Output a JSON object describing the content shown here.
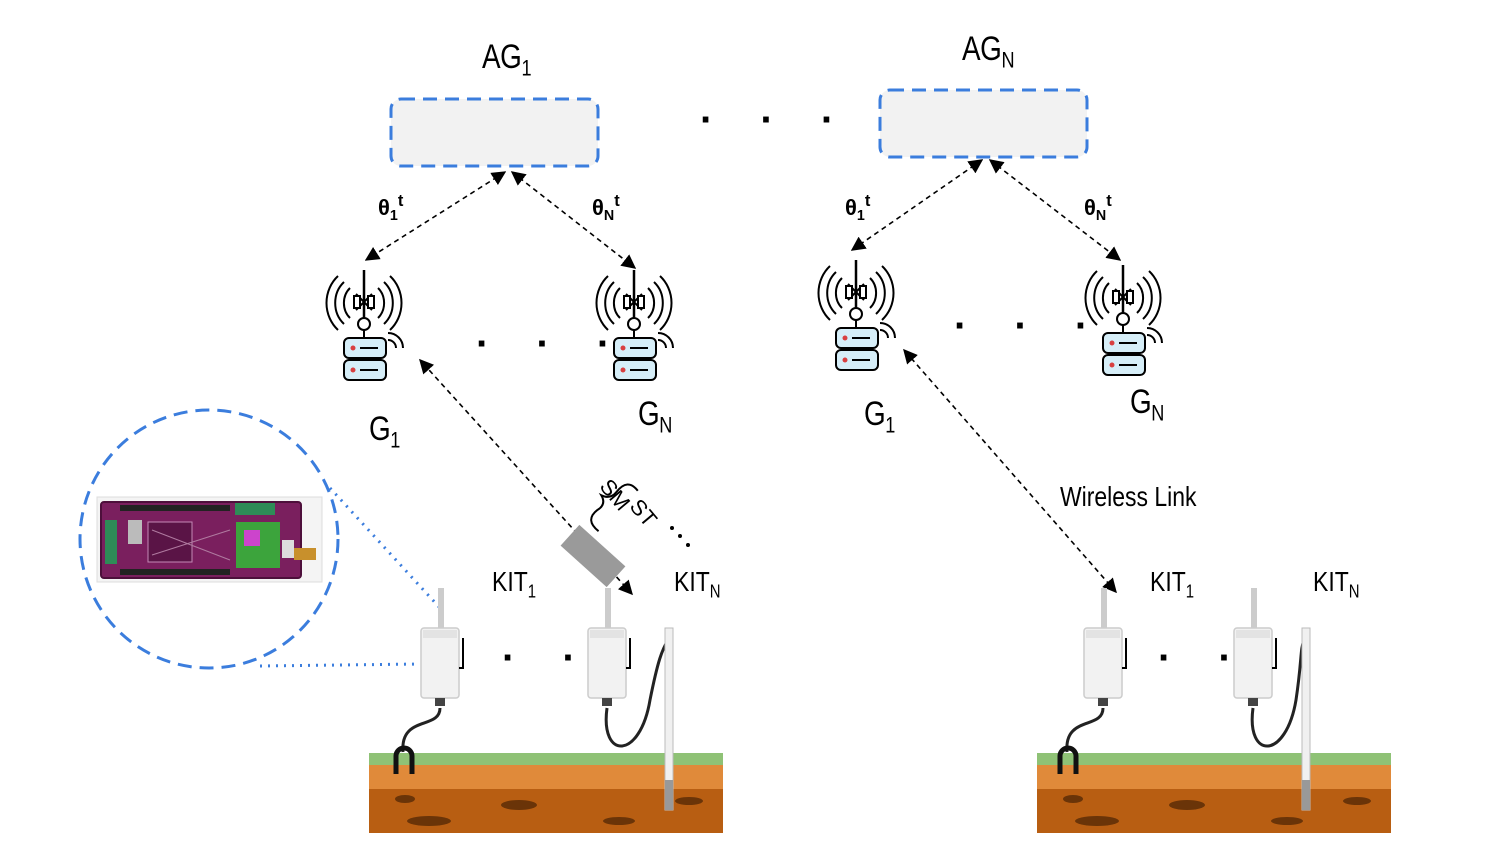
{
  "aggregators": [
    {
      "base": "AG",
      "sub": "1"
    },
    {
      "base": "AG",
      "sub": "N"
    }
  ],
  "theta_labels": [
    {
      "base": "θ",
      "sub": "1",
      "sup": "t"
    },
    {
      "base": "θ",
      "sub": "N",
      "sup": "t"
    },
    {
      "base": "θ",
      "sub": "1",
      "sup": "t"
    },
    {
      "base": "θ",
      "sub": "N",
      "sup": "t"
    }
  ],
  "gateways": [
    {
      "base": "G",
      "sub": "1"
    },
    {
      "base": "G",
      "sub": "N"
    },
    {
      "base": "G",
      "sub": "1"
    },
    {
      "base": "G",
      "sub": "N"
    }
  ],
  "kits": [
    {
      "base": "KIT",
      "sub": "1"
    },
    {
      "base": "KIT",
      "sub": "N"
    },
    {
      "base": "KIT",
      "sub": "1"
    },
    {
      "base": "KIT",
      "sub": "N"
    }
  ],
  "link_label": "Wireless Link",
  "packet_labels": {
    "sm": "SM",
    "st": "ST"
  },
  "ellipsis": "· · ·",
  "ellipsis_short": "· ·",
  "colors": {
    "accent_dash": "#3b7ddd",
    "grass": "#8fc276",
    "soil_top": "#e08a3a",
    "soil": "#b85e12"
  }
}
